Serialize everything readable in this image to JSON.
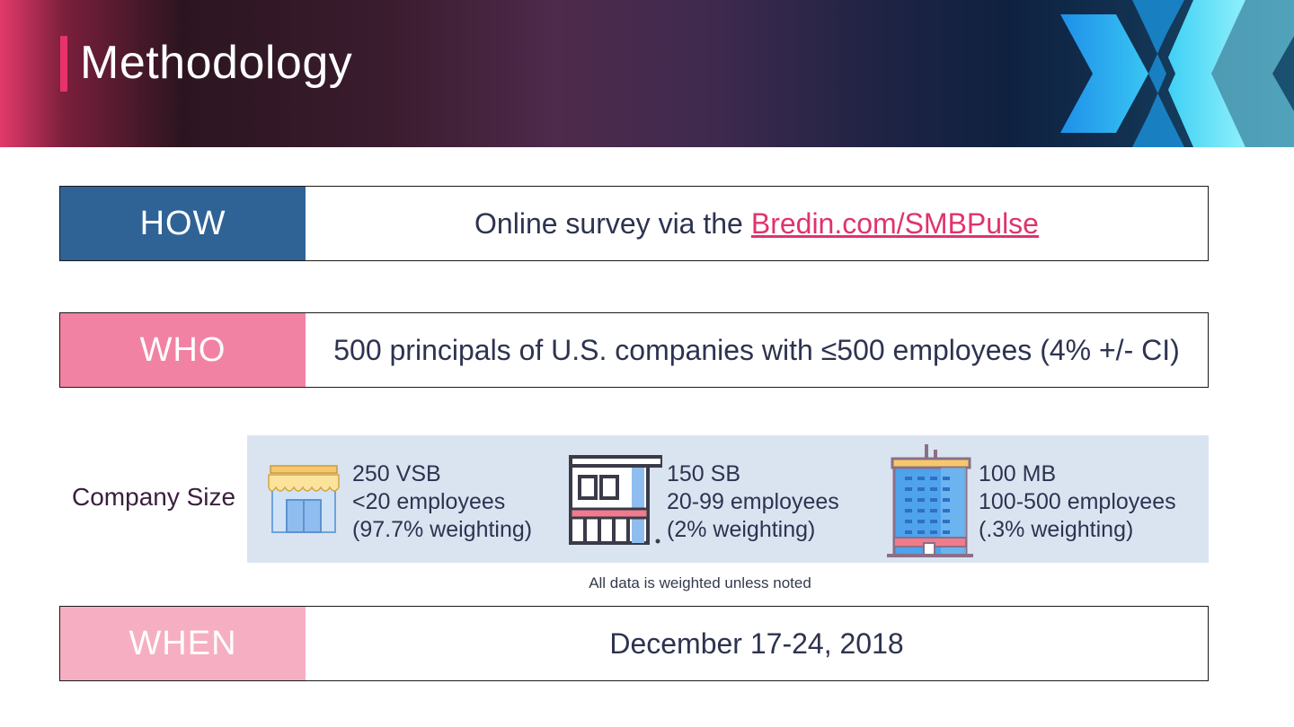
{
  "header": {
    "title": "Methodology"
  },
  "how": {
    "label": "HOW",
    "text": "Online survey via the",
    "link": "Bredin.com/SMBPulse",
    "color": "#2f6396"
  },
  "who": {
    "label": "WHO",
    "text": "500 principals of U.S. companies with ≤500 employees (4% +/- CI)",
    "color": "#f282a4"
  },
  "company_size": {
    "label": "Company Size",
    "segments": [
      {
        "icon": "storefront-icon",
        "line1": "250 VSB",
        "line2": "<20 employees",
        "line3": "(97.7% weighting)"
      },
      {
        "icon": "shop-building-icon",
        "line1": "150 SB",
        "line2": "20-99 employees",
        "line3": "(2% weighting)"
      },
      {
        "icon": "office-tower-icon",
        "line1": "100 MB",
        "line2": "100-500 employees",
        "line3": "(.3% weighting)"
      }
    ],
    "note": "All data is weighted unless noted"
  },
  "when": {
    "label": "WHEN",
    "text": "December 17-24, 2018",
    "color": "#f6afc2"
  }
}
